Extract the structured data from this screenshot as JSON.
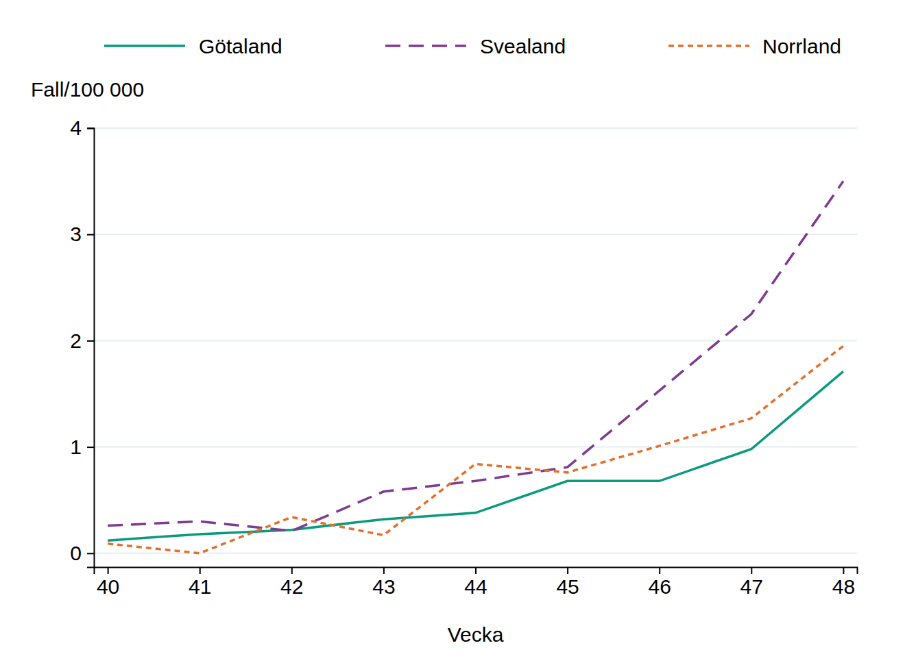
{
  "chart_data": {
    "type": "line",
    "x_label": "Vecka",
    "y_label": "Fall/100 000",
    "x": [
      40,
      41,
      42,
      43,
      44,
      45,
      46,
      47,
      48
    ],
    "series": [
      {
        "name": "Götaland",
        "color": "#0a9b7c",
        "line_style": "solid",
        "values": [
          0.12,
          0.18,
          0.22,
          0.32,
          0.38,
          0.68,
          0.68,
          0.98,
          1.71
        ]
      },
      {
        "name": "Svealand",
        "color": "#7e3b8f",
        "line_style": "dashed",
        "values": [
          0.26,
          0.3,
          0.21,
          0.58,
          0.68,
          0.81,
          1.53,
          2.25,
          3.5
        ]
      },
      {
        "name": "Norrland",
        "color": "#e3702d",
        "line_style": "dotted",
        "values": [
          0.09,
          0.0,
          0.34,
          0.17,
          0.84,
          0.76,
          1.01,
          1.27,
          1.95
        ]
      }
    ],
    "xlim": [
      39.85,
      48.15
    ],
    "xticks": [
      40,
      41,
      42,
      43,
      44,
      45,
      46,
      47,
      48
    ],
    "ylim": [
      -0.13,
      4
    ],
    "yticks": [
      0,
      1,
      2,
      3,
      4
    ],
    "grid": true,
    "legend": "top"
  }
}
